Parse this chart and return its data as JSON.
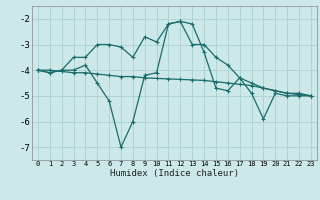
{
  "xlabel": "Humidex (Indice chaleur)",
  "bg_color": "#cce8e8",
  "grid_color": "#aed4d4",
  "line_color": "#1a6b6b",
  "x_ticks": [
    0,
    1,
    2,
    3,
    4,
    5,
    6,
    7,
    8,
    9,
    10,
    11,
    12,
    13,
    14,
    15,
    16,
    17,
    18,
    19,
    20,
    21,
    22,
    23
  ],
  "ylim": [
    -7.5,
    -1.5
  ],
  "xlim": [
    -0.5,
    23.5
  ],
  "yticks": [
    -7,
    -6,
    -5,
    -4,
    -3,
    -2
  ],
  "series1_x": [
    0,
    1,
    2,
    3,
    4,
    5,
    6,
    7,
    8,
    9,
    10,
    11,
    12,
    13,
    14,
    15,
    16,
    17,
    18,
    19,
    20,
    21,
    22,
    23
  ],
  "series1_y": [
    -4.0,
    -4.1,
    -4.0,
    -3.5,
    -3.5,
    -3.0,
    -3.0,
    -3.1,
    -3.5,
    -2.7,
    -2.9,
    -2.2,
    -2.1,
    -3.0,
    -3.0,
    -3.5,
    -3.8,
    -4.3,
    -4.5,
    -4.7,
    -4.8,
    -4.9,
    -4.9,
    -5.0
  ],
  "series2_x": [
    0,
    1,
    2,
    3,
    4,
    5,
    6,
    7,
    8,
    9,
    10,
    11,
    12,
    13,
    14,
    15,
    16,
    17,
    18,
    19,
    20,
    21,
    22,
    23
  ],
  "series2_y": [
    -4.0,
    -4.1,
    -4.0,
    -4.0,
    -3.8,
    -4.5,
    -5.2,
    -7.0,
    -6.0,
    -4.2,
    -4.1,
    -2.2,
    -2.1,
    -2.2,
    -3.3,
    -4.7,
    -4.8,
    -4.3,
    -4.9,
    -5.9,
    -4.9,
    -5.0,
    -5.0,
    -5.0
  ],
  "series3_x": [
    0,
    1,
    2,
    3,
    4,
    5,
    6,
    7,
    8,
    9,
    10,
    11,
    12,
    13,
    14,
    15,
    16,
    17,
    18,
    19,
    20,
    21,
    22,
    23
  ],
  "series3_y": [
    -4.0,
    -4.0,
    -4.05,
    -4.1,
    -4.1,
    -4.15,
    -4.2,
    -4.25,
    -4.25,
    -4.3,
    -4.32,
    -4.34,
    -4.36,
    -4.38,
    -4.4,
    -4.45,
    -4.5,
    -4.55,
    -4.6,
    -4.7,
    -4.8,
    -4.9,
    -4.95,
    -5.0
  ]
}
